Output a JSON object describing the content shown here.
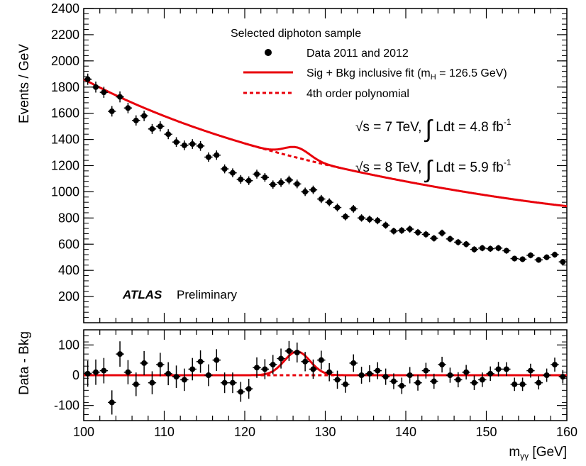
{
  "colors": {
    "fit": "#e8000b",
    "data": "#000000",
    "frame": "#000000",
    "background": "#ffffff"
  },
  "chart_data": [
    {
      "type": "scatter",
      "panel": "main",
      "xlim": [
        100,
        160
      ],
      "ylim": [
        0,
        2400
      ],
      "ylabel": "Events / GeV",
      "xlabel": "",
      "grid": false,
      "legend_placement": "top-right",
      "y_ticks": [
        200,
        400,
        600,
        800,
        1000,
        1200,
        1400,
        1600,
        1800,
        2000,
        2200,
        2400
      ],
      "x_ticks": [
        100,
        110,
        120,
        130,
        140,
        150,
        160
      ],
      "legend": {
        "header": "Selected diphoton sample",
        "entries": [
          {
            "label": "Data 2011 and 2012",
            "symbol": "marker"
          },
          {
            "label": "Sig + Bkg inclusive fit (m",
            "sub": "H",
            "tail": " = 126.5 GeV)",
            "symbol": "solid-line"
          },
          {
            "label": "4th order polynomial",
            "symbol": "dashed-line"
          }
        ]
      },
      "annotations": {
        "energy_2011": {
          "a": "√s = 7 TeV, ",
          "b": "∫",
          "c": " Ldt = 4.8 fb",
          "sup": "-1"
        },
        "energy_2012": {
          "a": "√s = 8 TeV, ",
          "b": "∫",
          "c": " Ldt = 5.9 fb",
          "sup": "-1"
        },
        "experiment": "ATLAS",
        "status": "Preliminary"
      },
      "series": [
        {
          "name": "Data 2011 and 2012",
          "kind": "points",
          "x": [
            100.5,
            101.5,
            102.5,
            103.5,
            104.5,
            105.5,
            106.5,
            107.5,
            108.5,
            109.5,
            110.5,
            111.5,
            112.5,
            113.5,
            114.5,
            115.5,
            116.5,
            117.5,
            118.5,
            119.5,
            120.5,
            121.5,
            122.5,
            123.5,
            124.5,
            125.5,
            126.5,
            127.5,
            128.5,
            129.5,
            130.5,
            131.5,
            132.5,
            133.5,
            134.5,
            135.5,
            136.5,
            137.5,
            138.5,
            139.5,
            140.5,
            141.5,
            142.5,
            143.5,
            144.5,
            145.5,
            146.5,
            147.5,
            148.5,
            149.5,
            150.5,
            151.5,
            152.5,
            153.5,
            154.5,
            155.5,
            156.5,
            157.5,
            158.5,
            159.5
          ],
          "y": [
            1860,
            1800,
            1760,
            1615,
            1725,
            1640,
            1545,
            1580,
            1480,
            1500,
            1440,
            1380,
            1355,
            1365,
            1350,
            1265,
            1280,
            1175,
            1145,
            1095,
            1085,
            1135,
            1110,
            1055,
            1070,
            1090,
            1060,
            1000,
            1015,
            945,
            920,
            880,
            810,
            870,
            800,
            790,
            780,
            745,
            700,
            705,
            715,
            690,
            675,
            645,
            685,
            640,
            615,
            600,
            560,
            570,
            565,
            570,
            550,
            490,
            485,
            515,
            480,
            500,
            520,
            465
          ],
          "err": [
            43,
            42,
            42,
            40,
            42,
            40,
            39,
            40,
            38,
            39,
            38,
            37,
            37,
            37,
            37,
            36,
            36,
            34,
            34,
            33,
            33,
            34,
            33,
            32,
            33,
            33,
            33,
            32,
            32,
            31,
            30,
            30,
            28,
            29,
            28,
            28,
            28,
            27,
            26,
            27,
            27,
            26,
            26,
            25,
            26,
            25,
            25,
            24,
            24,
            24,
            24,
            24,
            23,
            22,
            22,
            23,
            22,
            22,
            23,
            22
          ]
        },
        {
          "name": "Sig + Bkg inclusive fit",
          "kind": "function",
          "background_polynomial_4th_order": [
            1860,
            -32.74,
            0.5174,
            -0.005975,
            3.26e-05
          ],
          "signal": {
            "mean": 126.5,
            "sigma": 1.6,
            "amplitude": 78
          }
        },
        {
          "name": "4th order polynomial",
          "kind": "function",
          "background_only": true
        }
      ]
    },
    {
      "type": "scatter",
      "panel": "residual",
      "xlim": [
        100,
        160
      ],
      "ylim": [
        -150,
        150
      ],
      "ylabel": "Data - Bkg",
      "xlabel": "m",
      "xlabel_sub": "γγ",
      "xlabel_unit": " [GeV]",
      "grid": false,
      "y_ticks": [
        -100,
        0,
        100
      ],
      "x_ticks": [
        100,
        110,
        120,
        130,
        140,
        150,
        160
      ],
      "series": [
        {
          "name": "Data 2011 and 2012",
          "kind": "points",
          "x": [
            100.5,
            101.5,
            102.5,
            103.5,
            104.5,
            105.5,
            106.5,
            107.5,
            108.5,
            109.5,
            110.5,
            111.5,
            112.5,
            113.5,
            114.5,
            115.5,
            116.5,
            117.5,
            118.5,
            119.5,
            120.5,
            121.5,
            122.5,
            123.5,
            124.5,
            125.5,
            126.5,
            127.5,
            128.5,
            129.5,
            130.5,
            131.5,
            132.5,
            133.5,
            134.5,
            135.5,
            136.5,
            137.5,
            138.5,
            139.5,
            140.5,
            141.5,
            142.5,
            143.5,
            144.5,
            145.5,
            146.5,
            147.5,
            148.5,
            149.5,
            150.5,
            151.5,
            152.5,
            153.5,
            154.5,
            155.5,
            156.5,
            157.5,
            158.5,
            159.5
          ],
          "y": [
            5,
            10,
            15,
            -90,
            70,
            10,
            -30,
            40,
            -25,
            35,
            5,
            -5,
            -15,
            20,
            45,
            0,
            50,
            -25,
            -25,
            -55,
            -45,
            25,
            20,
            35,
            55,
            80,
            75,
            45,
            20,
            50,
            10,
            -15,
            -30,
            40,
            0,
            5,
            15,
            -5,
            -20,
            -35,
            0,
            -25,
            15,
            -20,
            35,
            0,
            -15,
            10,
            -25,
            -15,
            5,
            20,
            20,
            -30,
            -30,
            15,
            -25,
            0,
            35,
            -5
          ],
          "err": [
            43,
            42,
            42,
            40,
            42,
            40,
            39,
            40,
            38,
            39,
            38,
            37,
            37,
            37,
            37,
            36,
            36,
            34,
            34,
            33,
            33,
            34,
            33,
            32,
            33,
            33,
            33,
            32,
            32,
            31,
            30,
            30,
            28,
            29,
            28,
            28,
            28,
            27,
            26,
            27,
            27,
            26,
            26,
            25,
            26,
            25,
            25,
            24,
            24,
            24,
            24,
            24,
            23,
            22,
            22,
            23,
            22,
            22,
            23,
            22
          ]
        },
        {
          "name": "Sig + Bkg inclusive fit",
          "kind": "function",
          "signal_only": true
        },
        {
          "name": "4th order polynomial",
          "kind": "function",
          "zero_line": true
        }
      ]
    }
  ]
}
